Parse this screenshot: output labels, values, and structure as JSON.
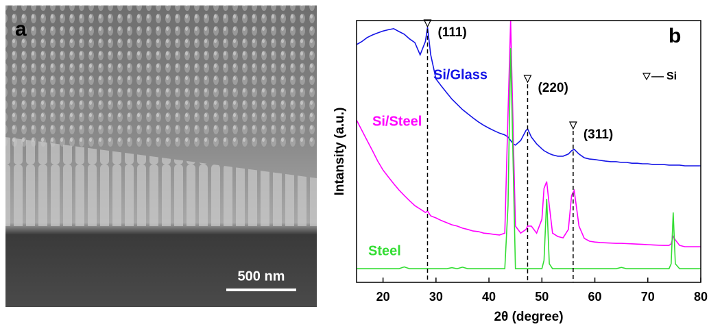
{
  "figure": {
    "panel_a_label": "a",
    "scale_bar": "500 nm"
  },
  "chart_data": {
    "type": "line",
    "panel_label": "b",
    "x_label": "2θ (degree)",
    "y_label": "Intansity (a.u.)",
    "xlim": [
      15,
      80
    ],
    "ylim": [
      0,
      100
    ],
    "xticks": [
      20,
      30,
      40,
      50,
      60,
      70,
      80
    ],
    "legend_note": "Si",
    "annotations": [
      {
        "x": 28.4,
        "label": "(111)"
      },
      {
        "x": 47.3,
        "label": "(220)"
      },
      {
        "x": 55.9,
        "label": "(311)"
      }
    ],
    "x": [
      15,
      16,
      17,
      18,
      19,
      20,
      21,
      22,
      23,
      24,
      25,
      26,
      27,
      28,
      28.4,
      29,
      30,
      31,
      32,
      33,
      34,
      35,
      36,
      37,
      38,
      39,
      40,
      41,
      42,
      43,
      43.6,
      44.1,
      44.6,
      45,
      46,
      47,
      47.3,
      48,
      49,
      50,
      50.4,
      50.9,
      51.4,
      52,
      53,
      54,
      55,
      55.6,
      56.1,
      57,
      58,
      59,
      60,
      61,
      62,
      63,
      64,
      65,
      66,
      67,
      68,
      69,
      70,
      71,
      72,
      73,
      74,
      74.4,
      74.8,
      75.2,
      76,
      77,
      78,
      79,
      80
    ],
    "series": [
      {
        "name": "Si/Glass",
        "color": "#1414e6",
        "values": [
          90.8,
          92,
          93.5,
          94.5,
          95.3,
          96,
          96.5,
          96.9,
          95.8,
          94.8,
          93,
          91.6,
          86.9,
          92,
          97.4,
          87,
          77.7,
          75,
          72.5,
          70,
          68,
          66,
          64.4,
          62.8,
          61.3,
          60,
          58.9,
          57.9,
          57,
          56.3,
          55.5,
          54.2,
          52.9,
          52.4,
          54.2,
          58,
          58.6,
          55.5,
          52.9,
          51,
          50.3,
          49.7,
          49.2,
          48.7,
          48.2,
          48.2,
          49,
          50.3,
          50.8,
          49,
          47.6,
          47.1,
          46.9,
          46.6,
          46.3,
          46.1,
          46.1,
          45.8,
          45.8,
          45.5,
          45.5,
          45.3,
          45.3,
          45,
          45,
          45,
          44.8,
          44.8,
          44.8,
          44.8,
          44.8,
          44.5,
          44.5,
          44.5,
          44.5
        ]
      },
      {
        "name": "Si/Steel",
        "color": "#ff00ff",
        "values": [
          62,
          58.1,
          54.2,
          50.3,
          46.3,
          42.9,
          40.3,
          37.7,
          35.3,
          33.2,
          31.2,
          29.3,
          28,
          26.7,
          27.2,
          25.4,
          24.6,
          23.6,
          22.8,
          22,
          21.5,
          20.7,
          20.2,
          19.6,
          19.4,
          18.8,
          18.6,
          18.3,
          18.1,
          18.8,
          64.7,
          100,
          55.5,
          21.5,
          18.8,
          20.2,
          21.5,
          21.5,
          18.8,
          24.1,
          35.9,
          38.5,
          29.3,
          18.8,
          17.5,
          17,
          20.2,
          33.2,
          35.1,
          21.5,
          16.8,
          15.7,
          15.4,
          15.2,
          15.1,
          15,
          14.9,
          14.9,
          14.8,
          14.7,
          14.6,
          14.5,
          14.4,
          14.3,
          14.2,
          14.1,
          14.1,
          14.7,
          17.5,
          16.2,
          14.1,
          13.6,
          13.6,
          13.6,
          13.6
        ]
      },
      {
        "name": "Steel",
        "color": "#33dd33",
        "values": [
          5.2,
          5.2,
          5.2,
          5.2,
          5.2,
          5.2,
          5.2,
          5.2,
          5.2,
          5.9,
          5.2,
          5.2,
          5.2,
          5.2,
          5.2,
          5.2,
          5.2,
          5.2,
          5.2,
          5.6,
          5.2,
          5.8,
          5.2,
          5.2,
          5.2,
          5.2,
          5.2,
          5.2,
          5.2,
          5.2,
          29.3,
          89.5,
          42.4,
          5.2,
          5.2,
          5.2,
          5.2,
          5.2,
          5.2,
          5.2,
          8.4,
          31.9,
          7.1,
          5.2,
          5.2,
          5.2,
          5.2,
          5.2,
          5.2,
          5.2,
          5.2,
          5.2,
          5.2,
          5.2,
          5.2,
          5.2,
          5.2,
          5.7,
          5.2,
          5.2,
          5.2,
          5.2,
          5.2,
          5.2,
          5.2,
          5.2,
          5.2,
          7.1,
          26.7,
          7.1,
          5.2,
          5.2,
          5.2,
          5.2,
          5.2
        ]
      }
    ]
  }
}
